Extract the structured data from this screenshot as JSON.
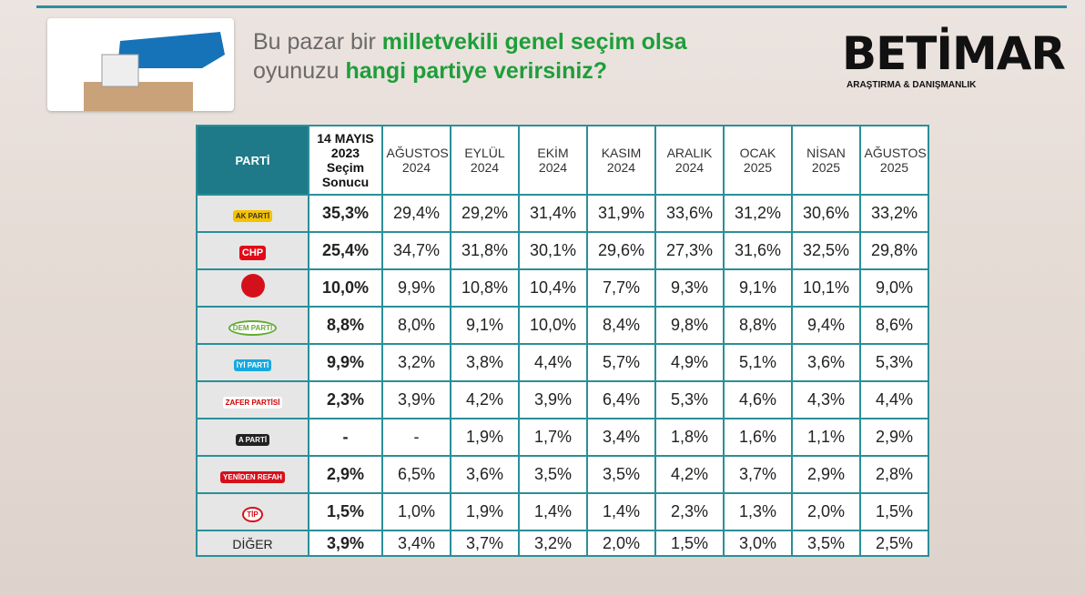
{
  "header": {
    "title_line1": [
      "Bu pazar bir ",
      "milletvekili genel seçim olsa"
    ],
    "title_line2": [
      "oyunuzu ",
      "hangi partiye verirsiniz?"
    ],
    "brand": "BETİMAR",
    "brand_sub": "ARAŞTIRMA & DANIŞMANLIK"
  },
  "table": {
    "columns": [
      "PARTİ",
      "14 MAYIS 2023 Seçim Sonucu",
      "AĞUSTOS 2024",
      "EYLÜL 2024",
      "EKİM 2024",
      "KASIM 2024",
      "ARALIK 2024",
      "OCAK 2025",
      "NİSAN 2025",
      "AĞUSTOS 2025"
    ],
    "rows": [
      {
        "label": "AK PARTİ",
        "cells": [
          "35,3%",
          "29,4%",
          "29,2%",
          "31,4%",
          "31,9%",
          "33,6%",
          "31,2%",
          "30,6%",
          "33,2%"
        ]
      },
      {
        "label": "CHP",
        "cells": [
          "25,4%",
          "34,7%",
          "31,8%",
          "30,1%",
          "29,6%",
          "27,3%",
          "31,6%",
          "32,5%",
          "29,8%"
        ]
      },
      {
        "cells": [
          "10,0%",
          "9,9%",
          "10,8%",
          "10,4%",
          "7,7%",
          "9,3%",
          "9,1%",
          "10,1%",
          "9,0%"
        ]
      },
      {
        "label": "DEM PARTİ",
        "cells": [
          "8,8%",
          "8,0%",
          "9,1%",
          "10,0%",
          "8,4%",
          "9,8%",
          "8,8%",
          "9,4%",
          "8,6%"
        ]
      },
      {
        "label": "İYİ PARTİ",
        "cells": [
          "9,9%",
          "3,2%",
          "3,8%",
          "4,4%",
          "5,7%",
          "4,9%",
          "5,1%",
          "3,6%",
          "5,3%"
        ]
      },
      {
        "label": "ZAFER PARTİSİ",
        "cells": [
          "2,3%",
          "3,9%",
          "4,2%",
          "3,9%",
          "6,4%",
          "5,3%",
          "4,6%",
          "4,3%",
          "4,4%"
        ]
      },
      {
        "label": "A PARTİ",
        "cells": [
          "-",
          "-",
          "1,9%",
          "1,7%",
          "3,4%",
          "1,8%",
          "1,6%",
          "1,1%",
          "2,9%"
        ]
      },
      {
        "label": "YENİDEN REFAH",
        "cells": [
          "2,9%",
          "6,5%",
          "3,6%",
          "3,5%",
          "3,5%",
          "4,2%",
          "3,7%",
          "2,9%",
          "2,8%"
        ]
      },
      {
        "label": "TİP",
        "cells": [
          "1,5%",
          "1,0%",
          "1,9%",
          "1,4%",
          "1,4%",
          "2,3%",
          "1,3%",
          "2,0%",
          "1,5%"
        ]
      },
      {
        "label": "DİĞER",
        "cells": [
          "3,9%",
          "3,4%",
          "3,7%",
          "3,2%",
          "2,0%",
          "1,5%",
          "3,0%",
          "3,5%",
          "2,5%"
        ]
      }
    ]
  }
}
